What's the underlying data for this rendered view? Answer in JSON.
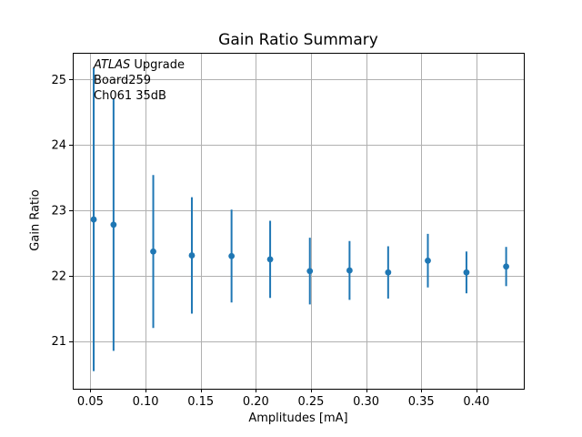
{
  "chart_data": {
    "type": "scatter",
    "subtype": "errorbar",
    "title": "Gain Ratio Summary",
    "xlabel": "Amplitudes [mA]",
    "ylabel": "Gain Ratio",
    "annotation": {
      "line1_italic": "ATLAS",
      "line1_rest": " Upgrade",
      "line2": "Board259",
      "line3": "Ch061 35dB"
    },
    "x": [
      0.053,
      0.071,
      0.107,
      0.142,
      0.178,
      0.213,
      0.249,
      0.285,
      0.32,
      0.356,
      0.391,
      0.427
    ],
    "y": [
      22.86,
      22.78,
      22.37,
      22.31,
      22.3,
      22.25,
      22.07,
      22.08,
      22.05,
      22.23,
      22.05,
      22.14
    ],
    "yerr": [
      2.32,
      1.93,
      1.17,
      0.89,
      0.71,
      0.59,
      0.51,
      0.45,
      0.4,
      0.41,
      0.32,
      0.3
    ],
    "xlim": [
      0.034,
      0.443
    ],
    "ylim": [
      20.27,
      25.41
    ],
    "x_ticks": [
      0.05,
      0.1,
      0.15,
      0.2,
      0.25,
      0.3,
      0.35,
      0.4
    ],
    "x_tick_labels": [
      "0.05",
      "0.10",
      "0.15",
      "0.20",
      "0.25",
      "0.30",
      "0.35",
      "0.40"
    ],
    "y_ticks": [
      21,
      22,
      23,
      24,
      25
    ],
    "y_tick_labels": [
      "21",
      "22",
      "23",
      "24",
      "25"
    ],
    "grid": true,
    "legend": false,
    "error_caps": false,
    "colors": {
      "series": "#1f77b4",
      "grid": "#b0b0b0",
      "spine": "#000000",
      "text": "#000000",
      "background": "#ffffff"
    }
  }
}
